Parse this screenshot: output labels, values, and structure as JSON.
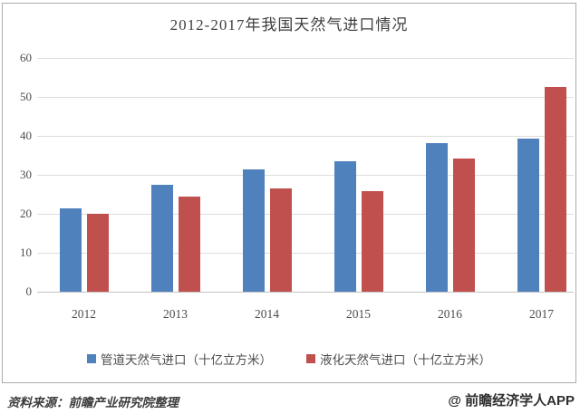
{
  "title": "2012-2017年我国天然气进口情况",
  "chart_data": {
    "type": "bar",
    "title": "2012-2017年我国天然气进口情况",
    "categories": [
      "2012",
      "2013",
      "2014",
      "2015",
      "2016",
      "2017"
    ],
    "series": [
      {
        "name": "管道天然气进口（十亿立方米）",
        "color": "#4F81BD",
        "values": [
          21.4,
          27.4,
          31.3,
          33.6,
          38.2,
          39.4
        ]
      },
      {
        "name": "液化天然气进口（十亿立方米）",
        "color": "#C0504D",
        "values": [
          20.0,
          24.5,
          26.4,
          25.8,
          34.3,
          52.6
        ]
      }
    ],
    "xlabel": "",
    "ylabel": "",
    "ylim": [
      0,
      60
    ],
    "yticks": [
      0,
      10,
      20,
      30,
      40,
      50,
      60
    ],
    "grid": true,
    "legend_position": "bottom"
  },
  "footer": {
    "source": "资料来源：前瞻产业研究院整理",
    "watermark": "@ 前瞻经济学人APP"
  }
}
